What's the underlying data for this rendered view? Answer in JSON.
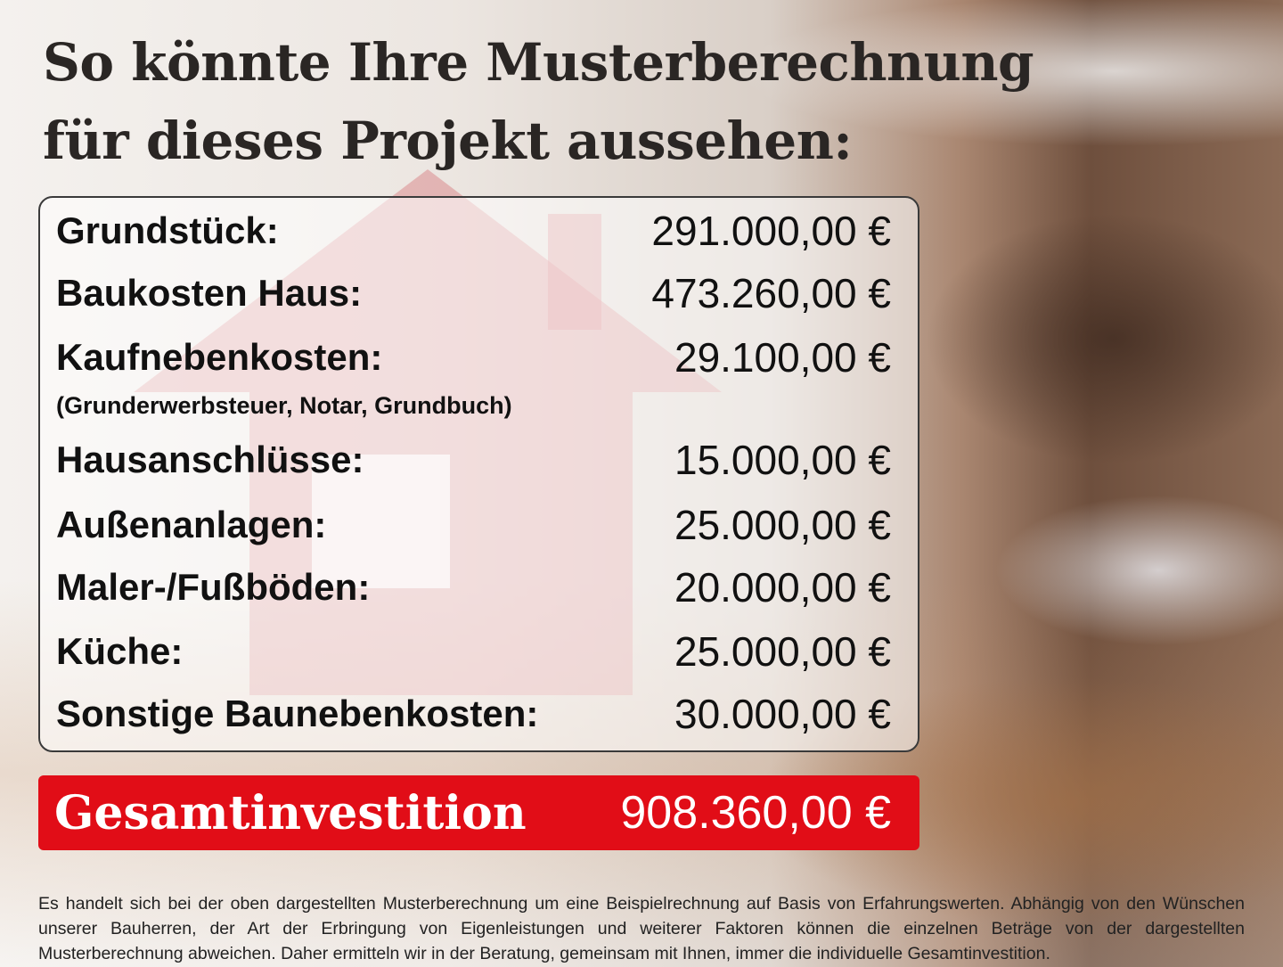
{
  "title": {
    "line1": "So könnte Ihre Musterberechnung",
    "line2": "für dieses Projekt aussehen:"
  },
  "items": [
    {
      "label": "Grundstück:",
      "value": "291.000,00 €"
    },
    {
      "label": "Baukosten Haus:",
      "value": "473.260,00 €"
    },
    {
      "label": "Kaufnebenkosten:",
      "value": "29.100,00 €",
      "note": "(Grunderwerbsteuer, Notar, Grundbuch)"
    },
    {
      "label": "Hausanschlüsse:",
      "value": "15.000,00 €"
    },
    {
      "label": "Außenanlagen:",
      "value": "25.000,00 €"
    },
    {
      "label": "Maler-/Fußböden:",
      "value": "20.000,00 €"
    },
    {
      "label": "Küche:",
      "value": "25.000,00 €"
    },
    {
      "label": "Sonstige Baunebenkosten:",
      "value": "30.000,00 €"
    }
  ],
  "total": {
    "label": "Gesamtinvestition",
    "value": "908.360,00 €"
  },
  "disclaimer": "Es handelt sich bei der oben dargestellten Musterberechnung um eine Beispielrechnung auf Basis von Erfahrungswerten. Abhängig von den Wünschen unserer Bauherren, der Art der Erbringung von Eigenleistungen und weiterer Faktoren können die einzelnen Beträge von der dargestellten Musterberechnung abweichen. Daher ermitteln wir in der Beratung, gemeinsam mit Ihnen, immer die individuelle Gesamtinvestition.",
  "colors": {
    "accent": "#e10d17"
  }
}
